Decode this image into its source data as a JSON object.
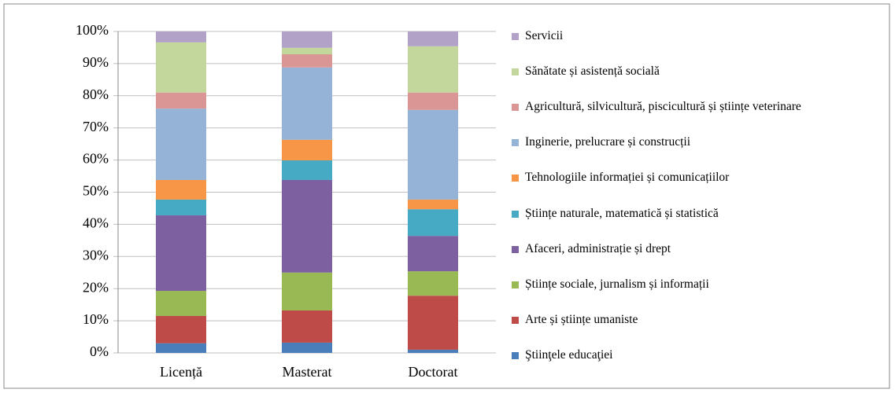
{
  "chart_data": {
    "type": "stacked_bar",
    "categories": [
      "Licență",
      "Masterat",
      "Doctorat"
    ],
    "ylim": [
      0,
      100
    ],
    "yticks": [
      {
        "value": 0,
        "label": "0%"
      },
      {
        "value": 10,
        "label": "10%"
      },
      {
        "value": 20,
        "label": "20%"
      },
      {
        "value": 30,
        "label": "30%"
      },
      {
        "value": 40,
        "label": "40%"
      },
      {
        "value": 50,
        "label": "50%"
      },
      {
        "value": 60,
        "label": "60%"
      },
      {
        "value": 70,
        "label": "70%"
      },
      {
        "value": 80,
        "label": "80%"
      },
      {
        "value": 90,
        "label": "90%"
      },
      {
        "value": 100,
        "label": "100%"
      }
    ],
    "grid": true,
    "legend": "right",
    "series": [
      {
        "name": "Ştiinţele educaţiei",
        "color": "#4a7ebb",
        "values": [
          3,
          3.2,
          1
        ]
      },
      {
        "name": "Arte și științe umaniste",
        "color": "#be4b48",
        "values": [
          8.5,
          10,
          16.8
        ]
      },
      {
        "name": "Științe sociale, jurnalism  și informații",
        "color": "#98b954",
        "values": [
          7.8,
          11.8,
          7.6
        ]
      },
      {
        "name": "Afaceri, administrație  și drept",
        "color": "#7d60a0",
        "values": [
          23.5,
          28.8,
          11
        ]
      },
      {
        "name": "Științe naturale, matematică și statistică",
        "color": "#46aac5",
        "values": [
          4.9,
          6.1,
          8.3
        ]
      },
      {
        "name": "Tehnologiile  informației  și comunicațiilor",
        "color": "#f79646",
        "values": [
          6.1,
          6.4,
          3
        ]
      },
      {
        "name": "Inginerie,  prelucrare și construcții",
        "color": "#95b3d7",
        "values": [
          22.2,
          22.5,
          27.9
        ]
      },
      {
        "name": "Agricultură,  silvicultură,  piscicultură și științe  veterinare",
        "color": "#d99694",
        "values": [
          5,
          4.1,
          5.4
        ]
      },
      {
        "name": "Sănătate și asistență socială",
        "color": "#c3d69b",
        "values": [
          15.6,
          2,
          14.4
        ]
      },
      {
        "name": "Servicii",
        "color": "#b3a2c7",
        "values": [
          3.4,
          5.1,
          4.6
        ]
      }
    ]
  }
}
